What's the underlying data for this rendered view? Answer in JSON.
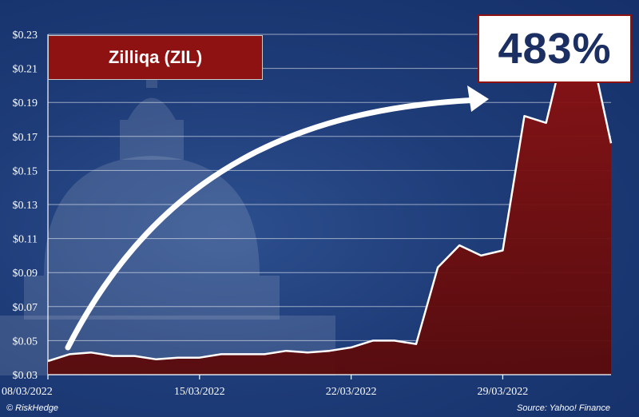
{
  "chart_data": {
    "type": "area",
    "title": "Zilliqa (ZIL)",
    "annotation": "483%",
    "ylim": [
      0.03,
      0.23
    ],
    "y_ticks": [
      "$0.23",
      "$0.21",
      "$0.19",
      "$0.17",
      "$0.15",
      "$0.13",
      "$0.11",
      "$0.09",
      "$0.07",
      "$0.05",
      "$0.03"
    ],
    "y_tick_values": [
      0.23,
      0.21,
      0.19,
      0.17,
      0.15,
      0.13,
      0.11,
      0.09,
      0.07,
      0.05,
      0.03
    ],
    "x_ticks": [
      "08/03/2022",
      "15/03/2022",
      "22/03/2022",
      "29/03/2022"
    ],
    "x_dates": [
      "08/03/2022",
      "09/03/2022",
      "10/03/2022",
      "11/03/2022",
      "12/03/2022",
      "13/03/2022",
      "14/03/2022",
      "15/03/2022",
      "16/03/2022",
      "17/03/2022",
      "18/03/2022",
      "19/03/2022",
      "20/03/2022",
      "21/03/2022",
      "22/03/2022",
      "23/03/2022",
      "24/03/2022",
      "25/03/2022",
      "26/03/2022",
      "27/03/2022",
      "28/03/2022",
      "29/03/2022",
      "30/03/2022",
      "31/03/2022",
      "01/04/2022",
      "02/04/2022",
      "03/04/2022"
    ],
    "values": [
      0.038,
      0.042,
      0.043,
      0.041,
      0.041,
      0.039,
      0.04,
      0.04,
      0.042,
      0.042,
      0.042,
      0.044,
      0.043,
      0.044,
      0.046,
      0.05,
      0.05,
      0.048,
      0.093,
      0.106,
      0.1,
      0.103,
      0.182,
      0.178,
      0.231,
      0.225,
      0.166
    ],
    "grid": true,
    "colors": {
      "area": "#7e1010",
      "line": "#ffffff",
      "background": "#1e3c78",
      "title_box": "#8e1212",
      "callout_text": "#1b2f63"
    }
  },
  "footer": {
    "copyright": "© RiskHedge",
    "source": "Source: Yahoo! Finance"
  }
}
